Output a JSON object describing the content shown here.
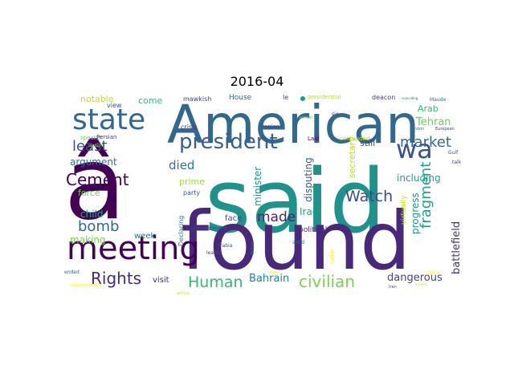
{
  "chart_data": {
    "type": "wordcloud",
    "title": "2016-04",
    "words": [
      {
        "text": "said",
        "weight": 100,
        "color": "#21918c"
      },
      {
        "text": "â",
        "weight": 97,
        "color": "#440154"
      },
      {
        "text": "found",
        "weight": 93,
        "color": "#482878"
      },
      {
        "text": "American",
        "weight": 62,
        "color": "#31688e"
      },
      {
        "text": "meeting",
        "weight": 38,
        "color": "#440154"
      },
      {
        "text": "state",
        "weight": 34,
        "color": "#31688e"
      },
      {
        "text": "wa",
        "weight": 29,
        "color": "#3b528b"
      },
      {
        "text": "president",
        "weight": 24,
        "color": "#355f8d"
      },
      {
        "text": "Cement",
        "weight": 19,
        "color": "#440154"
      },
      {
        "text": "Rights",
        "weight": 18,
        "color": "#482878"
      },
      {
        "text": "civilian",
        "weight": 18,
        "color": "#7ad151"
      },
      {
        "text": "Human",
        "weight": 17,
        "color": "#35b779"
      },
      {
        "text": "Watch",
        "weight": 17,
        "color": "#3e4989"
      },
      {
        "text": "market",
        "weight": 16,
        "color": "#31688e"
      },
      {
        "text": "least",
        "weight": 16,
        "color": "#3b528b"
      },
      {
        "text": "bomb",
        "weight": 16,
        "color": "#31688e"
      },
      {
        "text": "fragment",
        "weight": 16,
        "color": "#1f9e89"
      },
      {
        "text": "made",
        "weight": 15,
        "color": "#482475"
      },
      {
        "text": "died",
        "weight": 14,
        "color": "#2a788e"
      },
      {
        "text": "battlefield",
        "weight": 12,
        "color": "#46327e"
      },
      {
        "text": "dangerous",
        "weight": 12,
        "color": "#414487"
      },
      {
        "text": "Bahrain",
        "weight": 12,
        "color": "#26828e"
      },
      {
        "text": "Tehran",
        "weight": 12,
        "color": "#6ece58"
      },
      {
        "text": "including",
        "weight": 11,
        "color": "#1f9e89"
      },
      {
        "text": "progress",
        "weight": 11,
        "color": "#21918c"
      },
      {
        "text": "disputing",
        "weight": 11,
        "color": "#355f8d"
      },
      {
        "text": "minister",
        "weight": 11,
        "color": "#21918c"
      },
      {
        "text": "secretary",
        "weight": 11,
        "color": "#b5de2b"
      },
      {
        "text": "Iraqi",
        "weight": 11,
        "color": "#1f9e89"
      },
      {
        "text": "child",
        "weight": 10,
        "color": "#22a884"
      },
      {
        "text": "making",
        "weight": 10,
        "color": "#7ad151"
      },
      {
        "text": "argument",
        "weight": 10,
        "color": "#2c728e"
      },
      {
        "text": "force",
        "weight": 10,
        "color": "#6ece58"
      },
      {
        "text": "prime",
        "weight": 10,
        "color": "#9fda3a"
      },
      {
        "text": "Arab",
        "weight": 10,
        "color": "#35b779"
      },
      {
        "text": "still",
        "weight": 10,
        "color": "#404688"
      },
      {
        "text": "notable",
        "weight": 9,
        "color": "#bddf26"
      },
      {
        "text": "come",
        "weight": 9,
        "color": "#35b779"
      },
      {
        "text": "week",
        "weight": 9,
        "color": "#2c728e"
      },
      {
        "text": "visit",
        "weight": 9,
        "color": "#482878"
      },
      {
        "text": "face",
        "weight": 9,
        "color": "#404688"
      },
      {
        "text": "political",
        "weight": 8,
        "color": "#482878"
      },
      {
        "text": "virtually",
        "weight": 8,
        "color": "#c2df23"
      },
      {
        "text": "House",
        "weight": 8,
        "color": "#31688e"
      },
      {
        "text": "view",
        "weight": 7,
        "color": "#3b528b"
      },
      {
        "text": "crisis",
        "weight": 7,
        "color": "#46327e"
      },
      {
        "text": "Declaring",
        "weight": 7,
        "color": "#2a788e"
      },
      {
        "text": "party",
        "weight": 7,
        "color": "#3b528b"
      },
      {
        "text": "mawkish",
        "weight": 7,
        "color": "#3e4989"
      },
      {
        "text": "deacon",
        "weight": 7,
        "color": "#433e85"
      },
      {
        "text": "le",
        "weight": 7,
        "color": "#433e85"
      },
      {
        "text": "Laid",
        "weight": 6,
        "color": "#440154"
      },
      {
        "text": "commitment",
        "weight": 6,
        "color": "#3b528b"
      },
      {
        "text": "speaker",
        "weight": 6,
        "color": "#6ece58"
      },
      {
        "text": "region",
        "weight": 6,
        "color": "#414487"
      },
      {
        "text": "presidential",
        "weight": 6,
        "color": "#b5de2b"
      },
      {
        "text": "amid",
        "weight": 5,
        "color": "#2c728e"
      },
      {
        "text": "leader",
        "weight": 5,
        "color": "#404688"
      },
      {
        "text": "six",
        "weight": 5,
        "color": "#433e85"
      },
      {
        "text": "Maude",
        "weight": 5,
        "color": "#2c728e"
      },
      {
        "text": "contended",
        "weight": 5,
        "color": "#bddf26"
      },
      {
        "text": "Persian",
        "weight": 5,
        "color": "#46327e"
      },
      {
        "text": "talk",
        "weight": 5,
        "color": "#443983"
      },
      {
        "text": "Gulf",
        "weight": 5,
        "color": "#3b528b"
      },
      {
        "text": "ended",
        "weight": 5,
        "color": "#355f8d"
      },
      {
        "text": "opinion",
        "weight": 4,
        "color": "#86d549"
      },
      {
        "text": "Arabia",
        "weight": 4,
        "color": "#3e4989"
      },
      {
        "text": "Britain",
        "weight": 4,
        "color": "#2a788e"
      },
      {
        "text": "Union",
        "weight": 4,
        "color": "#fde725"
      },
      {
        "text": "nation",
        "weight": 4,
        "color": "#fde725"
      },
      {
        "text": "Iran",
        "weight": 4,
        "color": "#3e4989"
      },
      {
        "text": "arrival",
        "weight": 4,
        "color": "#86d549"
      },
      {
        "text": "article",
        "weight": 4,
        "color": "#d2e21b"
      },
      {
        "text": "London",
        "weight": 3,
        "color": "#26828e"
      },
      {
        "text": "European",
        "weight": 3,
        "color": "#414487"
      },
      {
        "text": "coinciding",
        "weight": 3,
        "color": "#2c728e"
      },
      {
        "text": "stronger",
        "weight": 3,
        "color": "#fde725"
      },
      {
        "text": "rapprochement",
        "weight": 3,
        "color": "#fde725"
      },
      {
        "text": "another",
        "weight": 3,
        "color": "#d2e21b"
      }
    ]
  }
}
